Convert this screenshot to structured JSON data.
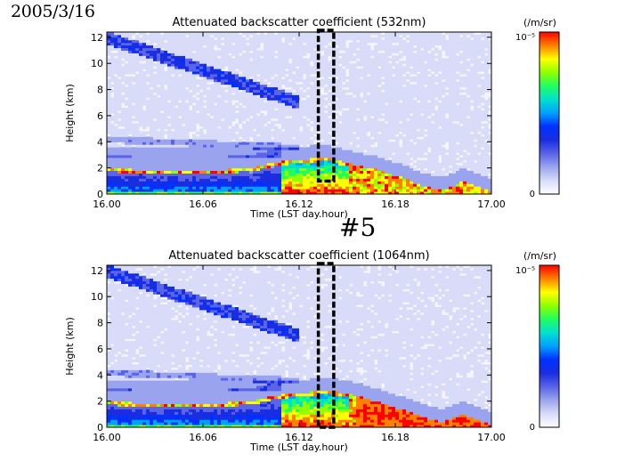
{
  "date_label": "2005/3/16",
  "case_label": "#5",
  "colors": {
    "scale": [
      "#ffffff",
      "#d8dcf8",
      "#9aa4ee",
      "#5a64e8",
      "#1a2ee0",
      "#0030ff",
      "#00a0ff",
      "#00e0d0",
      "#20ff60",
      "#90ff00",
      "#ffff00",
      "#ff8000",
      "#ff0000"
    ],
    "marker_box": "#000000"
  },
  "chart_data": [
    {
      "type": "heatmap",
      "title": "Attenuated backscatter coefficient (532nm)",
      "xlabel": "Time (LST day.hour)",
      "ylabel": "Height (km)",
      "x_ticks": [
        "16.00",
        "16.06",
        "16.12",
        "16.18",
        "17.00"
      ],
      "x_ticks_hours": [
        16.0,
        16.1,
        16.2,
        16.3,
        16.4
      ],
      "xlim": [
        16.0,
        16.4
      ],
      "y_ticks": [
        0,
        2,
        4,
        6,
        8,
        10,
        12
      ],
      "ylim": [
        0,
        12.4
      ],
      "colorbar": {
        "unit": "(/m/sr)",
        "max_label": "10⁻⁵",
        "min_label": "0"
      },
      "highlight_box": {
        "x_start": 16.22,
        "x_end": 16.236,
        "y_bottom": 1.0,
        "y_top": 12.4
      },
      "boundary_layer_top": [
        [
          16.0,
          2.0
        ],
        [
          16.05,
          1.8
        ],
        [
          16.1,
          1.8
        ],
        [
          16.15,
          2.0
        ],
        [
          16.18,
          2.5
        ],
        [
          16.21,
          2.7
        ],
        [
          16.23,
          2.8
        ],
        [
          16.25,
          2.4
        ],
        [
          16.28,
          1.9
        ],
        [
          16.31,
          1.2
        ],
        [
          16.33,
          0.6
        ],
        [
          16.35,
          0.3
        ],
        [
          16.37,
          1.0
        ],
        [
          16.39,
          0.5
        ],
        [
          16.4,
          0.2
        ]
      ]
    },
    {
      "type": "heatmap",
      "title": "Attenuated backscatter coefficient (1064nm)",
      "xlabel": "Time (LST day.hour)",
      "ylabel": "Height (km)",
      "x_ticks": [
        "16.00",
        "16.06",
        "16.12",
        "16.18",
        "17.00"
      ],
      "x_ticks_hours": [
        16.0,
        16.1,
        16.2,
        16.3,
        16.4
      ],
      "xlim": [
        16.0,
        16.4
      ],
      "y_ticks": [
        0,
        2,
        4,
        6,
        8,
        10,
        12
      ],
      "ylim": [
        0,
        12.4
      ],
      "colorbar": {
        "unit": "(/m/sr)",
        "max_label": "10⁻⁵",
        "min_label": "0"
      },
      "highlight_box": {
        "x_start": 16.22,
        "x_end": 16.236,
        "y_bottom": 0,
        "y_top": 12.4
      },
      "boundary_layer_top": [
        [
          16.0,
          2.0
        ],
        [
          16.05,
          1.8
        ],
        [
          16.1,
          1.8
        ],
        [
          16.15,
          2.0
        ],
        [
          16.18,
          2.5
        ],
        [
          16.21,
          2.7
        ],
        [
          16.23,
          2.8
        ],
        [
          16.25,
          2.6
        ],
        [
          16.28,
          2.0
        ],
        [
          16.31,
          1.3
        ],
        [
          16.33,
          0.8
        ],
        [
          16.35,
          0.4
        ],
        [
          16.37,
          1.0
        ],
        [
          16.39,
          0.5
        ],
        [
          16.4,
          0.2
        ]
      ]
    }
  ]
}
